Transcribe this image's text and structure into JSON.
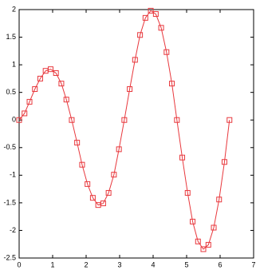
{
  "chart_data": {
    "type": "line",
    "x": [
      0,
      0.16,
      0.31,
      0.47,
      0.63,
      0.79,
      0.94,
      1.1,
      1.26,
      1.41,
      1.57,
      1.73,
      1.88,
      2.04,
      2.2,
      2.36,
      2.51,
      2.67,
      2.83,
      2.98,
      3.14,
      3.3,
      3.46,
      3.61,
      3.77,
      3.93,
      4.08,
      4.24,
      4.4,
      4.56,
      4.71,
      4.87,
      5.03,
      5.18,
      5.34,
      5.5,
      5.65,
      5.81,
      5.97,
      6.13,
      6.28
    ],
    "series": [
      {
        "color": "#e8383d",
        "marker": "square",
        "values": [
          0,
          0.12,
          0.33,
          0.56,
          0.75,
          0.89,
          0.92,
          0.85,
          0.66,
          0.37,
          0,
          -0.41,
          -0.81,
          -1.16,
          -1.41,
          -1.54,
          -1.51,
          -1.32,
          -0.99,
          -0.53,
          0,
          0.56,
          1.09,
          1.54,
          1.85,
          1.98,
          1.92,
          1.67,
          1.23,
          0.66,
          0,
          -0.68,
          -1.32,
          -1.84,
          -2.2,
          -2.34,
          -2.26,
          -1.95,
          -1.44,
          -0.76,
          0
        ]
      }
    ],
    "xlim": [
      0,
      7
    ],
    "xticks": [
      0,
      1,
      2,
      3,
      4,
      5,
      6,
      7
    ],
    "ylim": [
      -2.5,
      2
    ],
    "yticks": [
      -2.5,
      -2,
      -1.5,
      -1,
      -0.5,
      0,
      0.5,
      1,
      1.5,
      2
    ],
    "grid": false
  }
}
